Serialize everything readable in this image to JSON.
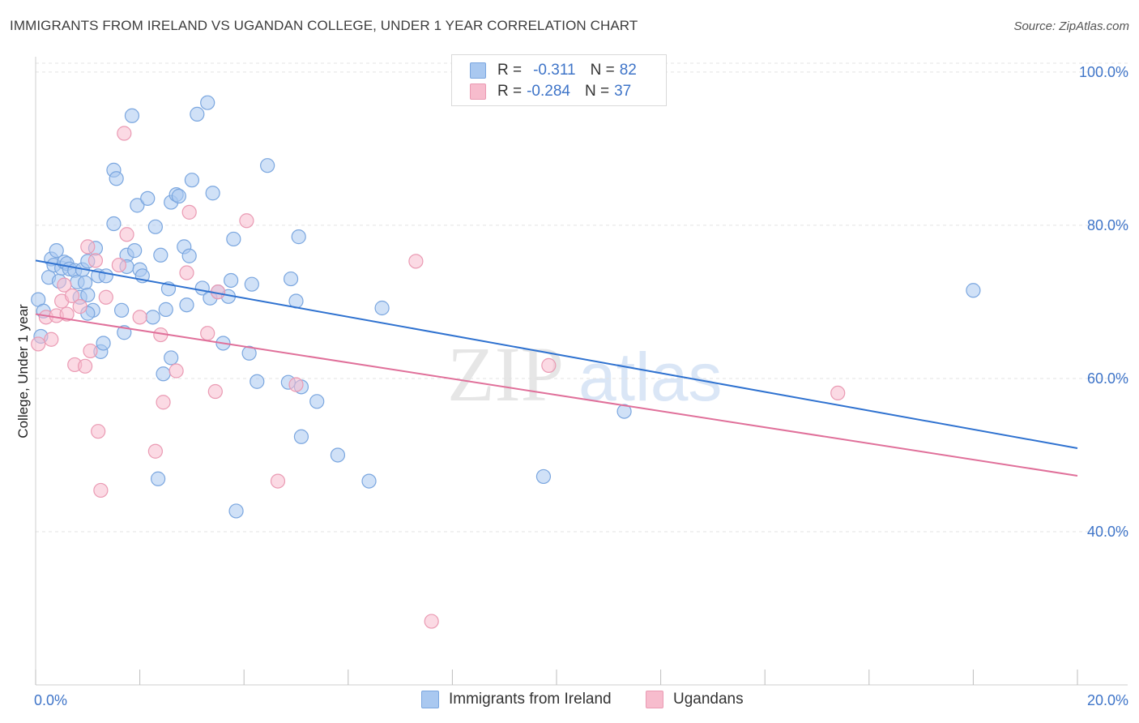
{
  "header": {
    "title": "IMMIGRANTS FROM IRELAND VS UGANDAN COLLEGE, UNDER 1 YEAR CORRELATION CHART",
    "source": "Source: ZipAtlas.com"
  },
  "watermark": {
    "zip": "ZIP",
    "atlas": "atlas"
  },
  "legend": {
    "rows": [
      {
        "r_label": "R =",
        "r_value": "-0.311",
        "n_label": "N =",
        "n_value": "82"
      },
      {
        "r_label": "R =",
        "r_value": "-0.284",
        "n_label": "N =",
        "n_value": "37"
      }
    ]
  },
  "bottom_legend": {
    "series1": "Immigrants from Ireland",
    "series2": "Ugandans"
  },
  "colors": {
    "series1_fill": "#a9c8f0",
    "series1_stroke": "#7aa6df",
    "series1_line": "#2f72d0",
    "series2_fill": "#f7bccd",
    "series2_stroke": "#ea9ab3",
    "series2_line": "#e0709a",
    "grid": "#e3e3e3",
    "tick_text": "#3e74c8"
  },
  "chart_data": {
    "type": "scatter",
    "title": "IMMIGRANTS FROM IRELAND VS UGANDAN COLLEGE, UNDER 1 YEAR CORRELATION CHART",
    "xlabel": "",
    "ylabel": "College, Under 1 year",
    "xlim": [
      0,
      20
    ],
    "ylim": [
      20,
      102
    ],
    "x_ticks": [
      0,
      20
    ],
    "x_tick_labels": [
      "0.0%",
      "20.0%"
    ],
    "y_ticks": [
      40,
      60,
      80,
      100
    ],
    "y_tick_labels": [
      "40.0%",
      "60.0%",
      "80.0%",
      "100.0%"
    ],
    "grid": true,
    "legend_position": "top-center",
    "series": [
      {
        "name": "Immigrants from Ireland",
        "r": -0.311,
        "n": 82,
        "trend": {
          "x": [
            0,
            20
          ],
          "y": [
            75.4,
            50.9
          ]
        },
        "points": [
          [
            0.05,
            70.3
          ],
          [
            0.1,
            65.5
          ],
          [
            0.15,
            68.8
          ],
          [
            0.25,
            73.2
          ],
          [
            0.3,
            75.6
          ],
          [
            0.35,
            74.8
          ],
          [
            0.4,
            76.7
          ],
          [
            0.45,
            72.7
          ],
          [
            0.5,
            74.4
          ],
          [
            0.55,
            75.2
          ],
          [
            0.6,
            75.0
          ],
          [
            0.65,
            74.3
          ],
          [
            0.75,
            74.1
          ],
          [
            0.8,
            72.6
          ],
          [
            0.85,
            70.6
          ],
          [
            0.9,
            74.2
          ],
          [
            0.95,
            72.5
          ],
          [
            1.0,
            75.3
          ],
          [
            1.0,
            70.9
          ],
          [
            1.1,
            68.9
          ],
          [
            1.15,
            77.0
          ],
          [
            1.2,
            73.4
          ],
          [
            1.25,
            63.5
          ],
          [
            1.3,
            64.6
          ],
          [
            1.35,
            73.4
          ],
          [
            1.5,
            87.2
          ],
          [
            1.5,
            80.2
          ],
          [
            1.55,
            86.1
          ],
          [
            1.65,
            68.9
          ],
          [
            1.7,
            66.0
          ],
          [
            1.75,
            76.1
          ],
          [
            1.75,
            74.6
          ],
          [
            1.85,
            94.3
          ],
          [
            1.9,
            76.7
          ],
          [
            1.95,
            82.6
          ],
          [
            2.0,
            74.2
          ],
          [
            2.05,
            73.4
          ],
          [
            2.15,
            83.5
          ],
          [
            2.25,
            68.0
          ],
          [
            2.3,
            79.8
          ],
          [
            2.4,
            76.1
          ],
          [
            2.45,
            60.6
          ],
          [
            2.5,
            69.0
          ],
          [
            2.55,
            71.7
          ],
          [
            2.6,
            62.7
          ],
          [
            2.6,
            83.0
          ],
          [
            2.7,
            84.0
          ],
          [
            2.75,
            83.8
          ],
          [
            2.85,
            77.2
          ],
          [
            2.95,
            76.0
          ],
          [
            3.0,
            85.9
          ],
          [
            3.1,
            94.5
          ],
          [
            3.2,
            71.8
          ],
          [
            3.3,
            96.0
          ],
          [
            3.35,
            70.5
          ],
          [
            3.4,
            84.2
          ],
          [
            3.5,
            71.3
          ],
          [
            3.6,
            64.6
          ],
          [
            3.7,
            70.7
          ],
          [
            3.75,
            72.8
          ],
          [
            3.8,
            78.2
          ],
          [
            4.1,
            63.3
          ],
          [
            4.15,
            72.3
          ],
          [
            4.25,
            59.6
          ],
          [
            4.45,
            87.8
          ],
          [
            4.85,
            59.5
          ],
          [
            4.9,
            73.0
          ],
          [
            5.0,
            70.1
          ],
          [
            5.05,
            78.5
          ],
          [
            5.1,
            52.4
          ],
          [
            5.1,
            58.9
          ],
          [
            5.4,
            57.0
          ],
          [
            5.8,
            50.0
          ],
          [
            6.4,
            46.6
          ],
          [
            6.65,
            69.2
          ],
          [
            9.75,
            47.2
          ],
          [
            11.3,
            55.7
          ],
          [
            18.0,
            71.5
          ],
          [
            2.35,
            46.9
          ],
          [
            3.85,
            42.7
          ],
          [
            1.0,
            68.5
          ],
          [
            2.9,
            69.6
          ]
        ]
      },
      {
        "name": "Ugandans",
        "r": -0.284,
        "n": 37,
        "trend": {
          "x": [
            0,
            20
          ],
          "y": [
            68.4,
            47.3
          ]
        },
        "points": [
          [
            0.05,
            64.5
          ],
          [
            0.2,
            68.0
          ],
          [
            0.3,
            65.1
          ],
          [
            0.4,
            68.2
          ],
          [
            0.5,
            70.1
          ],
          [
            0.55,
            72.2
          ],
          [
            0.6,
            68.4
          ],
          [
            0.7,
            70.8
          ],
          [
            0.75,
            61.8
          ],
          [
            0.85,
            69.4
          ],
          [
            0.95,
            61.6
          ],
          [
            1.0,
            77.2
          ],
          [
            1.05,
            63.6
          ],
          [
            1.15,
            75.4
          ],
          [
            1.2,
            53.1
          ],
          [
            1.25,
            45.4
          ],
          [
            1.35,
            70.6
          ],
          [
            1.6,
            74.8
          ],
          [
            1.7,
            92.0
          ],
          [
            1.75,
            78.8
          ],
          [
            2.0,
            68.0
          ],
          [
            2.3,
            50.5
          ],
          [
            2.4,
            65.7
          ],
          [
            2.45,
            56.9
          ],
          [
            2.7,
            61.0
          ],
          [
            2.9,
            73.8
          ],
          [
            2.95,
            81.7
          ],
          [
            3.3,
            65.9
          ],
          [
            3.45,
            58.3
          ],
          [
            3.5,
            71.3
          ],
          [
            4.05,
            80.6
          ],
          [
            4.65,
            46.6
          ],
          [
            5.0,
            59.2
          ],
          [
            7.3,
            75.3
          ],
          [
            7.6,
            28.3
          ],
          [
            9.85,
            61.7
          ],
          [
            15.4,
            58.1
          ]
        ]
      }
    ]
  }
}
